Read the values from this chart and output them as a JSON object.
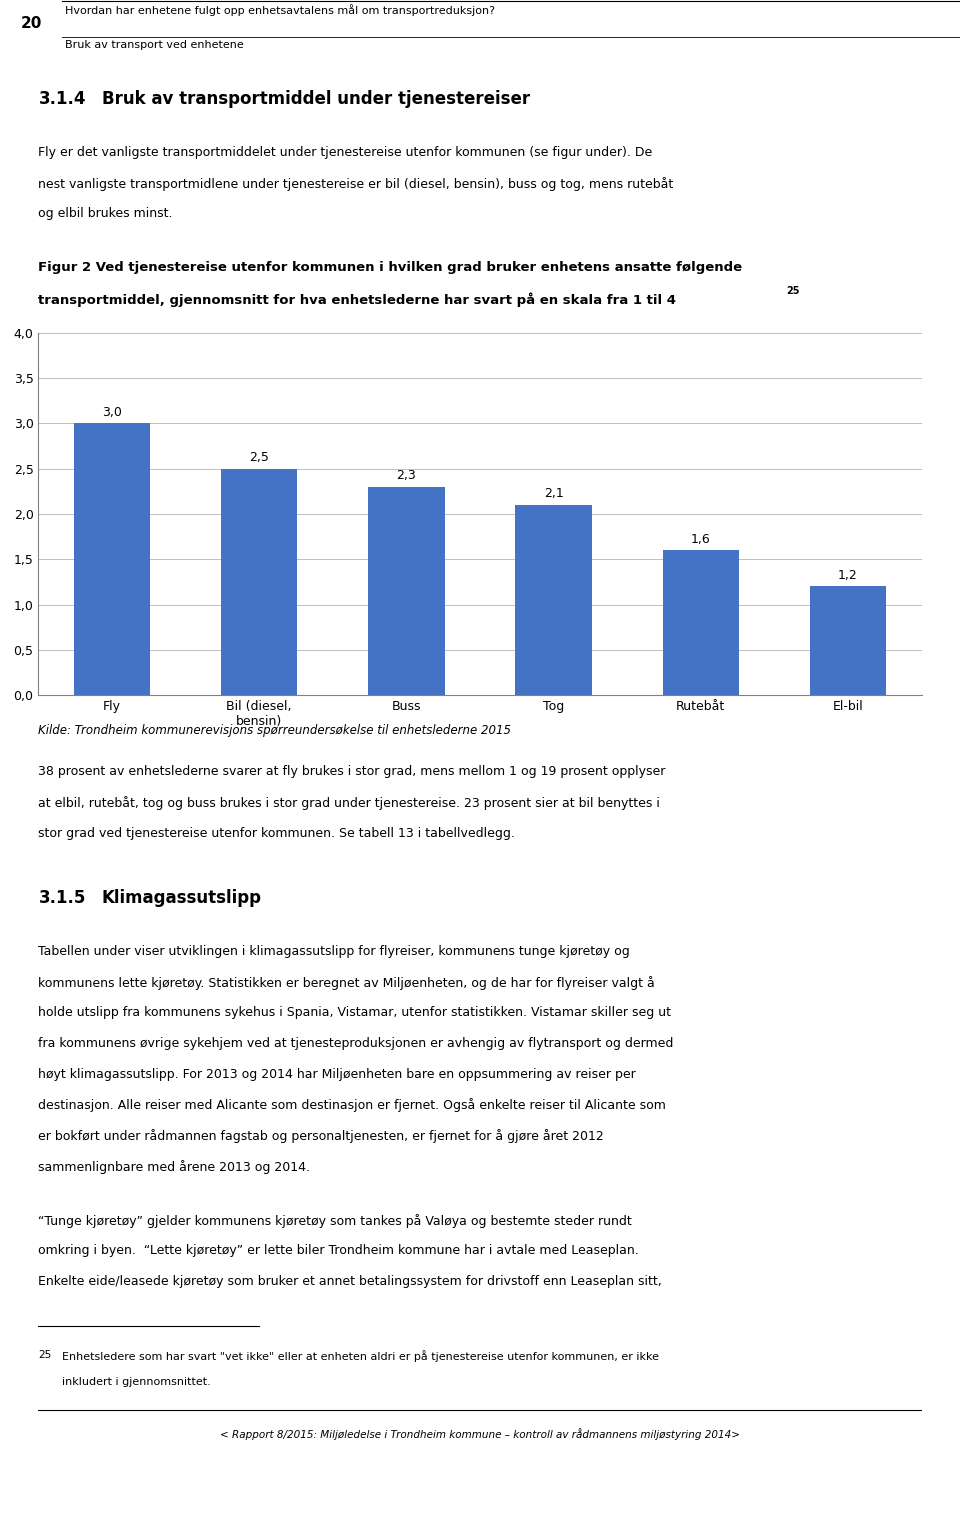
{
  "page_number": "20",
  "header_line1": "Hvordan har enhetene fulgt opp enhetsavtalens mål om transportreduksjon?",
  "header_line2": "Bruk av transport ved enhetene",
  "section_num1": "3.1.4",
  "section_title1": "Bruk av transportmiddel under tjenestereiser",
  "para1_lines": [
    "Fly er det vanligste transportmiddelet under tjenestereise utenfor kommunen (se figur under). De",
    "nest vanligste transportmidlene under tjenestereise er bil (diesel, bensin), buss og tog, mens rutebåt",
    "og elbil brukes minst."
  ],
  "fig_cap_line1": "Figur 2 Ved tjenestereise utenfor kommunen i hvilken grad bruker enhetens ansatte følgende",
  "fig_cap_line2": "transportmiddel, gjennomsnitt for hva enhetslederne har svart på en skala fra 1 til 4",
  "fig_cap_super": "25",
  "categories": [
    "Fly",
    "Bil (diesel,\nbensin)",
    "Buss",
    "Tog",
    "Rutebåt",
    "El-bil"
  ],
  "values": [
    3.0,
    2.5,
    2.3,
    2.1,
    1.6,
    1.2
  ],
  "bar_color": "#4472C4",
  "ylim": [
    0.0,
    4.0
  ],
  "yticks": [
    0.0,
    0.5,
    1.0,
    1.5,
    2.0,
    2.5,
    3.0,
    3.5,
    4.0
  ],
  "source_text": "Kilde: Trondheim kommunerevisjons spørreundersøkelse til enhetslederne 2015",
  "para2_lines": [
    "38 prosent av enhetslederne svarer at fly brukes i stor grad, mens mellom 1 og 19 prosent opplyser",
    "at elbil, rutebåt, tog og buss brukes i stor grad under tjenestereise. 23 prosent sier at bil benyttes i",
    "stor grad ved tjenestereise utenfor kommunen. Se tabell 13 i tabellvedlegg."
  ],
  "section_num2": "3.1.5",
  "section_title2": "Klimagassutslipp",
  "para3_lines": [
    "Tabellen under viser utviklingen i klimagassutslipp for flyreiser, kommunens tunge kjøretøy og",
    "kommunens lette kjøretøy. Statistikken er beregnet av Miljøenheten, og de har for flyreiser valgt å",
    "holde utslipp fra kommunens sykehus i Spania, Vistamar, utenfor statistikken. Vistamar skiller seg ut",
    "fra kommunens øvrige sykehjem ved at tjenesteproduksjonen er avhengig av flytransport og dermed",
    "høyt klimagassutslipp. For 2013 og 2014 har Miljøenheten bare en oppsummering av reiser per",
    "destinasjon. Alle reiser med Alicante som destinasjon er fjernet. Også enkelte reiser til Alicante som",
    "er bokført under rådmannen fagstab og personaltjenesten, er fjernet for å gjøre året 2012",
    "sammenlignbare med årene 2013 og 2014."
  ],
  "para4_lines": [
    "“Tunge kjøretøy” gjelder kommunens kjøretøy som tankes på Valøya og bestemte steder rundt",
    "omkring i byen.  “Lette kjøretøy” er lette biler Trondheim kommune har i avtale med Leaseplan.",
    "Enkelte eide/leasede kjøretøy som bruker et annet betalingssystem for drivstoff enn Leaseplan sitt,"
  ],
  "footnote_num": "25",
  "footnote_line1": "Enhetsledere som har svart \"vet ikke\" eller at enheten aldri er på tjenestereise utenfor kommunen, er ikke",
  "footnote_line2": "inkludert i gjennomsnittet.",
  "footer_text": "< Rapport 8/2015: Miljøledelse i Trondheim kommune – kontroll av rådmannens miljøstyring 2014>",
  "background_color": "#ffffff",
  "text_color": "#000000",
  "grid_color": "#c0c0c0",
  "value_label_fontsize": 9,
  "axis_tick_fontsize": 9,
  "xlabel_fontsize": 9,
  "chart_bg": "#ffffff",
  "chart_border_color": "#808080"
}
